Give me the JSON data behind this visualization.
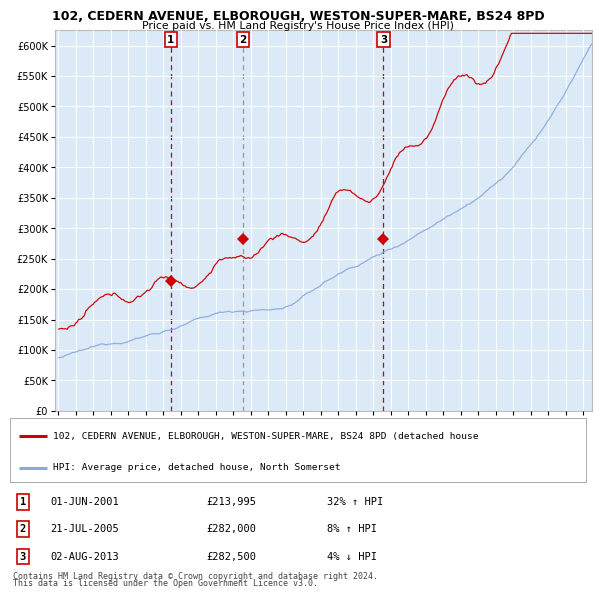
{
  "title": "102, CEDERN AVENUE, ELBOROUGH, WESTON-SUPER-MARE, BS24 8PD",
  "subtitle": "Price paid vs. HM Land Registry's House Price Index (HPI)",
  "bg_color": "#dce9f7",
  "grid_color": "#ffffff",
  "red_line_color": "#cc0000",
  "blue_line_color": "#88aadd",
  "vline1_color": "#cc0000",
  "vline2_color": "#999999",
  "vline3_color": "#cc0000",
  "sale_dates": [
    2001.42,
    2005.55,
    2013.58
  ],
  "sale_prices": [
    213995,
    282000,
    282500
  ],
  "xmin": 1994.8,
  "xmax": 2025.5,
  "ymin": 0,
  "ymax": 625000,
  "yticks": [
    0,
    50000,
    100000,
    150000,
    200000,
    250000,
    300000,
    350000,
    400000,
    450000,
    500000,
    550000,
    600000
  ],
  "legend_line1": "102, CEDERN AVENUE, ELBOROUGH, WESTON-SUPER-MARE, BS24 8PD (detached house",
  "legend_line2": "HPI: Average price, detached house, North Somerset",
  "table_rows": [
    [
      "1",
      "01-JUN-2001",
      "£213,995",
      "32% ↑ HPI"
    ],
    [
      "2",
      "21-JUL-2005",
      "£282,000",
      "8% ↑ HPI"
    ],
    [
      "3",
      "02-AUG-2013",
      "£282,500",
      "4% ↓ HPI"
    ]
  ],
  "footer1": "Contains HM Land Registry data © Crown copyright and database right 2024.",
  "footer2": "This data is licensed under the Open Government Licence v3.0."
}
